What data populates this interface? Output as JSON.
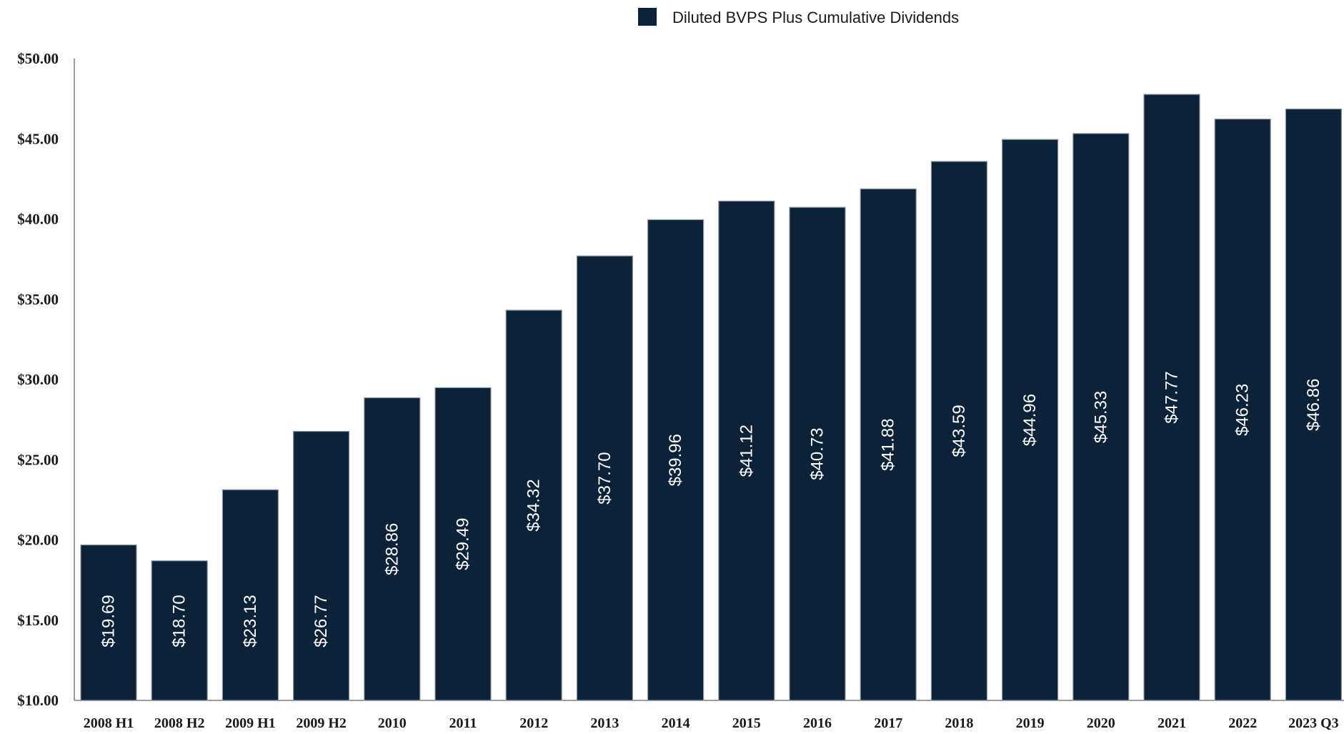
{
  "chart_data": {
    "type": "bar",
    "categories": [
      "2008 H1",
      "2008 H2",
      "2009 H1",
      "2009 H2",
      "2010",
      "2011",
      "2012",
      "2013",
      "2014",
      "2015",
      "2016",
      "2017",
      "2018",
      "2019",
      "2020",
      "2021",
      "2022",
      "2023 Q3"
    ],
    "series": [
      {
        "name": "Diluted BVPS Plus Cumulative Dividends",
        "color": "#0b2238",
        "values": [
          19.69,
          18.7,
          23.13,
          26.77,
          28.86,
          29.49,
          34.32,
          37.7,
          39.96,
          41.12,
          40.73,
          41.88,
          43.59,
          44.96,
          45.33,
          47.77,
          46.23,
          46.86
        ],
        "data_labels": [
          "$19.69",
          "$18.70",
          "$23.13",
          "$26.77",
          "$28.86",
          "$29.49",
          "$34.32",
          "$37.70",
          "$39.96",
          "$41.12",
          "$40.73",
          "$41.88",
          "$43.59",
          "$44.96",
          "$45.33",
          "$47.77",
          "$46.23",
          "$46.86"
        ]
      }
    ],
    "ylim": [
      10,
      50
    ],
    "y_ticks": [
      10,
      15,
      20,
      25,
      30,
      35,
      40,
      45,
      50
    ],
    "y_tick_labels": [
      "$10.00",
      "$15.00",
      "$20.00",
      "$25.00",
      "$30.00",
      "$35.00",
      "$40.00",
      "$45.00",
      "$50.00"
    ],
    "grid": false,
    "legend_position": "top-center",
    "data_label_orientation": "vertical"
  },
  "legend": {
    "label": "Diluted BVPS Plus Cumulative Dividends"
  }
}
